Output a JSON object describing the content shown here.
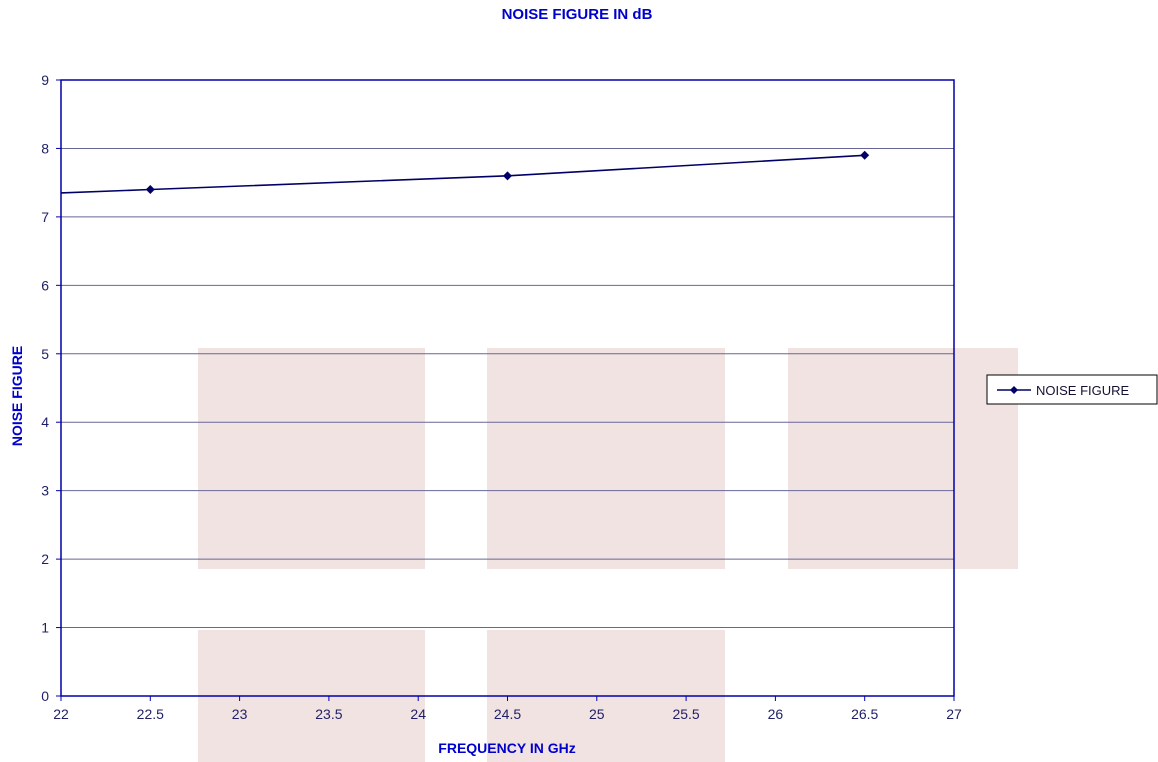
{
  "chart_data": {
    "type": "line",
    "title": "NOISE FIGURE IN dB",
    "xlabel": "FREQUENCY IN GHz",
    "ylabel": "NOISE FIGURE",
    "xlim": [
      22,
      27
    ],
    "ylim": [
      0,
      9
    ],
    "xticks": [
      "22",
      "22.5",
      "23",
      "23.5",
      "24",
      "24.5",
      "25",
      "25.5",
      "26",
      "26.5",
      "27"
    ],
    "yticks": [
      "0",
      "1",
      "2",
      "3",
      "4",
      "5",
      "6",
      "7",
      "8",
      "9"
    ],
    "grid": "horizontal",
    "legend_position": "right",
    "series": [
      {
        "name": "NOISE FIGURE",
        "color": "#000066",
        "marker": "diamond",
        "x": [
          22.5,
          24.5,
          26.5
        ],
        "y": [
          7.4,
          7.6,
          7.9
        ]
      }
    ],
    "colors": {
      "axis": "#0000aa",
      "gridline": "#666699",
      "text": "#0000cc"
    }
  }
}
